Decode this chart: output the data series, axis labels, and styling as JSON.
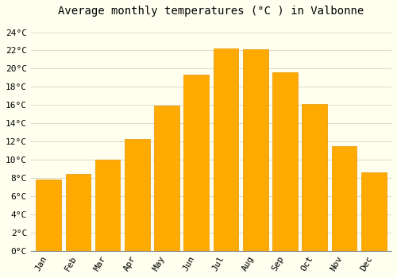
{
  "title": "Average monthly temperatures (°C ) in Valbonne",
  "months": [
    "Jan",
    "Feb",
    "Mar",
    "Apr",
    "May",
    "Jun",
    "Jul",
    "Aug",
    "Sep",
    "Oct",
    "Nov",
    "Dec"
  ],
  "values": [
    7.8,
    8.4,
    10.0,
    12.3,
    15.9,
    19.3,
    22.2,
    22.1,
    19.6,
    16.1,
    11.5,
    8.6
  ],
  "bar_color": "#FFAA00",
  "bar_edge_color": "#E89400",
  "background_color": "#FFFFF0",
  "plot_bg_color": "#FFFFF0",
  "grid_color": "#DDDDCC",
  "ylim": [
    0,
    25
  ],
  "yticks": [
    0,
    2,
    4,
    6,
    8,
    10,
    12,
    14,
    16,
    18,
    20,
    22,
    24
  ],
  "title_fontsize": 10,
  "tick_fontsize": 8,
  "font_family": "monospace",
  "bar_width": 0.85
}
